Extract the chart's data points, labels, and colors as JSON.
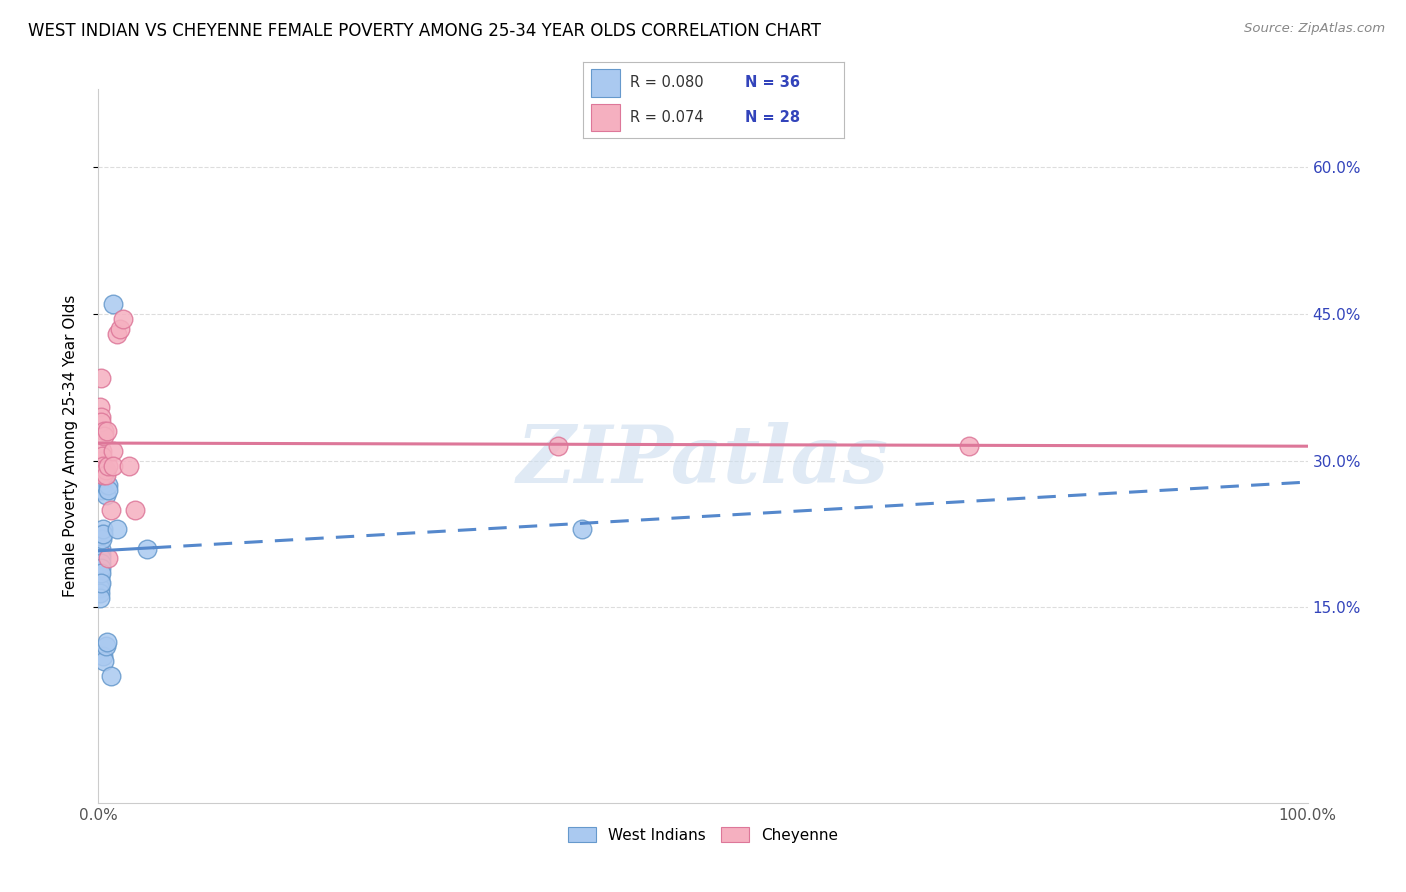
{
  "title": "WEST INDIAN VS CHEYENNE FEMALE POVERTY AMONG 25-34 YEAR OLDS CORRELATION CHART",
  "source": "Source: ZipAtlas.com",
  "ylabel": "Female Poverty Among 25-34 Year Olds",
  "xlim": [
    0,
    1.0
  ],
  "ylim": [
    -0.05,
    0.68
  ],
  "yticks_right": [
    0.15,
    0.3,
    0.45,
    0.6
  ],
  "yticklabels_right": [
    "15.0%",
    "30.0%",
    "45.0%",
    "60.0%"
  ],
  "grid_color": "#dddddd",
  "background_color": "#ffffff",
  "west_indians_color": "#aac9f0",
  "cheyenne_color": "#f5b0c0",
  "west_indians_edge": "#6699cc",
  "cheyenne_edge": "#dd7799",
  "west_indians_R": 0.08,
  "west_indians_N": 36,
  "cheyenne_R": 0.074,
  "cheyenne_N": 28,
  "legend_text_color": "#3344bb",
  "trend_blue_color": "#5588cc",
  "trend_pink_color": "#dd7799",
  "watermark": "ZIPatlas",
  "west_indians_x": [
    0.001,
    0.001,
    0.001,
    0.001,
    0.001,
    0.001,
    0.001,
    0.001,
    0.002,
    0.002,
    0.002,
    0.002,
    0.002,
    0.002,
    0.002,
    0.003,
    0.003,
    0.003,
    0.003,
    0.003,
    0.004,
    0.004,
    0.004,
    0.005,
    0.005,
    0.005,
    0.006,
    0.006,
    0.007,
    0.008,
    0.008,
    0.01,
    0.012,
    0.015,
    0.04,
    0.4
  ],
  "west_indians_y": [
    0.195,
    0.19,
    0.185,
    0.18,
    0.175,
    0.17,
    0.165,
    0.16,
    0.21,
    0.205,
    0.2,
    0.195,
    0.19,
    0.185,
    0.175,
    0.28,
    0.275,
    0.27,
    0.225,
    0.22,
    0.23,
    0.225,
    0.1,
    0.29,
    0.285,
    0.095,
    0.265,
    0.11,
    0.115,
    0.275,
    0.27,
    0.08,
    0.46,
    0.23,
    0.21,
    0.23
  ],
  "cheyenne_x": [
    0.001,
    0.001,
    0.001,
    0.002,
    0.002,
    0.002,
    0.003,
    0.003,
    0.004,
    0.004,
    0.004,
    0.005,
    0.005,
    0.006,
    0.006,
    0.007,
    0.008,
    0.008,
    0.01,
    0.012,
    0.012,
    0.015,
    0.018,
    0.02,
    0.025,
    0.03,
    0.38,
    0.72
  ],
  "cheyenne_y": [
    0.355,
    0.3,
    0.295,
    0.385,
    0.345,
    0.34,
    0.31,
    0.305,
    0.295,
    0.29,
    0.285,
    0.33,
    0.325,
    0.29,
    0.285,
    0.33,
    0.295,
    0.2,
    0.25,
    0.31,
    0.295,
    0.43,
    0.435,
    0.445,
    0.295,
    0.25,
    0.315,
    0.315
  ]
}
